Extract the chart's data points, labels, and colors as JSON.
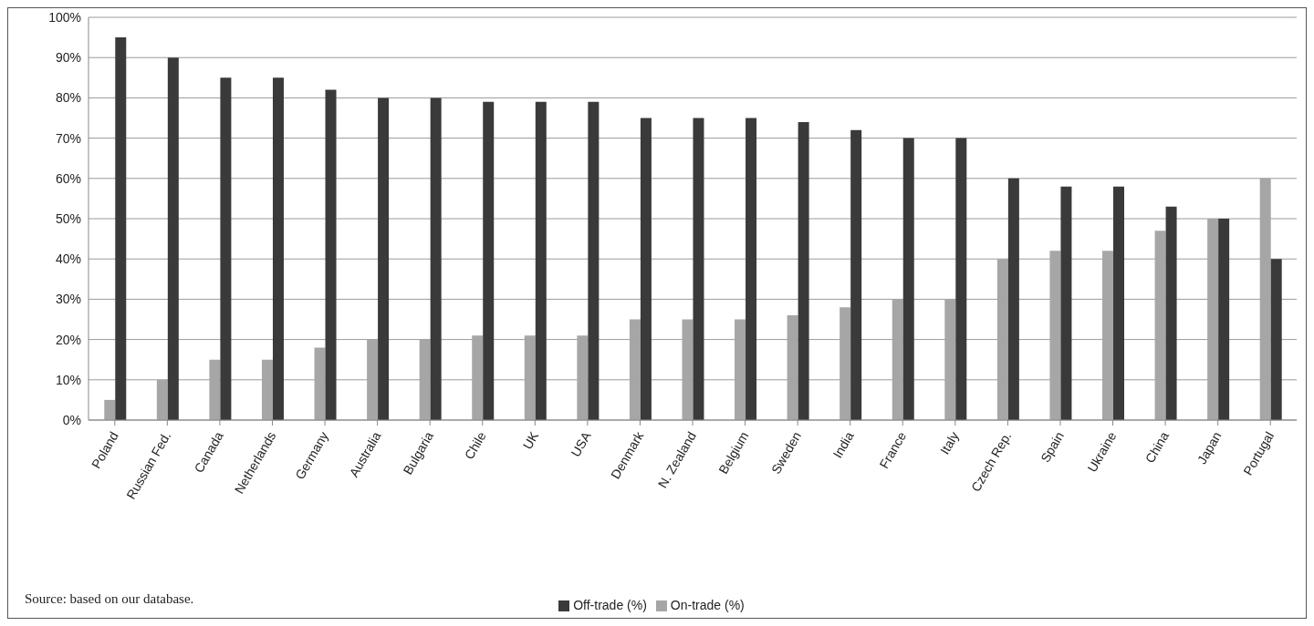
{
  "chart_data": {
    "type": "bar",
    "categories": [
      "Poland",
      "Russian Fed.",
      "Canada",
      "Netherlands",
      "Germany",
      "Australia",
      "Bulgaria",
      "Chile",
      "UK",
      "USA",
      "Denmark",
      "N. Zealand",
      "Belgium",
      "Sweden",
      "India",
      "France",
      "Italy",
      "Czech Rep.",
      "Spain",
      "Ukraine",
      "China",
      "Japan",
      "Portugal"
    ],
    "series": [
      {
        "name": "On-trade (%)",
        "color": "#a6a6a6",
        "values": [
          5,
          10,
          15,
          15,
          18,
          20,
          20,
          21,
          21,
          21,
          25,
          25,
          25,
          26,
          28,
          30,
          30,
          40,
          42,
          42,
          47,
          50,
          60
        ]
      },
      {
        "name": "Off-trade (%)",
        "color": "#3a3a3a",
        "values": [
          95,
          90,
          85,
          85,
          82,
          80,
          80,
          79,
          79,
          79,
          75,
          75,
          75,
          74,
          72,
          70,
          70,
          60,
          58,
          58,
          53,
          50,
          40
        ]
      }
    ],
    "ylim": [
      0,
      100
    ],
    "yticks": [
      {
        "value": 0,
        "label": "0%"
      },
      {
        "value": 10,
        "label": "10%"
      },
      {
        "value": 20,
        "label": "20%"
      },
      {
        "value": 30,
        "label": "30%"
      },
      {
        "value": 40,
        "label": "40%"
      },
      {
        "value": 50,
        "label": "50%"
      },
      {
        "value": 60,
        "label": "60%"
      },
      {
        "value": 70,
        "label": "70%"
      },
      {
        "value": 80,
        "label": "80%"
      },
      {
        "value": 90,
        "label": "90%"
      },
      {
        "value": 100,
        "label": "100%"
      }
    ],
    "grid": "y",
    "legend": "bottom",
    "annotations": [
      "Source: based on our database."
    ]
  }
}
